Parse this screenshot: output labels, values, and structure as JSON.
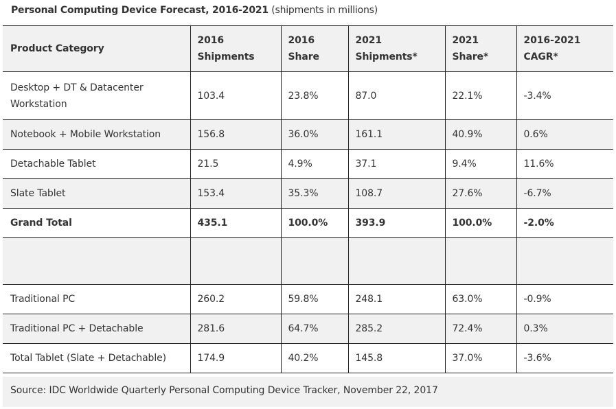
{
  "caption": {
    "title": "Personal Computing Device Forecast, 2016-2021",
    "subtitle": "(shipments in millions)"
  },
  "table": {
    "headers": [
      [
        "Product Category"
      ],
      [
        "2016",
        "Shipments"
      ],
      [
        "2016",
        "Share"
      ],
      [
        "2021",
        "Shipments*"
      ],
      [
        "2021",
        "Share*"
      ],
      [
        "2016-2021",
        "CAGR*"
      ]
    ],
    "rows": [
      {
        "category": [
          "Desktop + DT & Datacenter",
          "Workstation"
        ],
        "ship2016": "103.4",
        "share2016": "23.8%",
        "ship2021": "87.0",
        "share2021": "22.1%",
        "cagr": "-3.4%"
      },
      {
        "category": [
          "Notebook + Mobile Workstation"
        ],
        "ship2016": "156.8",
        "share2016": "36.0%",
        "ship2021": "161.1",
        "share2021": "40.9%",
        "cagr": "0.6%"
      },
      {
        "category": [
          "Detachable Tablet"
        ],
        "ship2016": "21.5",
        "share2016": "4.9%",
        "ship2021": "37.1",
        "share2021": "9.4%",
        "cagr": "11.6%"
      },
      {
        "category": [
          "Slate Tablet"
        ],
        "ship2016": "153.4",
        "share2016": "35.3%",
        "ship2021": "108.7",
        "share2021": "27.6%",
        "cagr": "-6.7%"
      },
      {
        "category": [
          "Grand Total"
        ],
        "ship2016": "435.1",
        "share2016": "100.0%",
        "ship2021": "393.9",
        "share2021": "100.0%",
        "cagr": "-2.0%"
      },
      {
        "category": [
          ""
        ],
        "ship2016": "",
        "share2016": "",
        "ship2021": "",
        "share2021": "",
        "cagr": ""
      },
      {
        "category": [
          "Traditional PC"
        ],
        "ship2016": "260.2",
        "share2016": "59.8%",
        "ship2021": "248.1",
        "share2021": "63.0%",
        "cagr": "-0.9%"
      },
      {
        "category": [
          "Traditional PC + Detachable"
        ],
        "ship2016": "281.6",
        "share2016": "64.7%",
        "ship2021": "285.2",
        "share2021": "72.4%",
        "cagr": "0.3%"
      },
      {
        "category": [
          "Total Tablet (Slate + Detachable)"
        ],
        "ship2016": "174.9",
        "share2016": "40.2%",
        "ship2021": "145.8",
        "share2021": "37.0%",
        "cagr": "-3.6%"
      }
    ]
  },
  "source": "Source: IDC Worldwide Quarterly Personal Computing Device Tracker, November 22, 2017",
  "colors": {
    "row_shade": "#f1f1f1",
    "border": "#222222",
    "text": "#333333"
  }
}
